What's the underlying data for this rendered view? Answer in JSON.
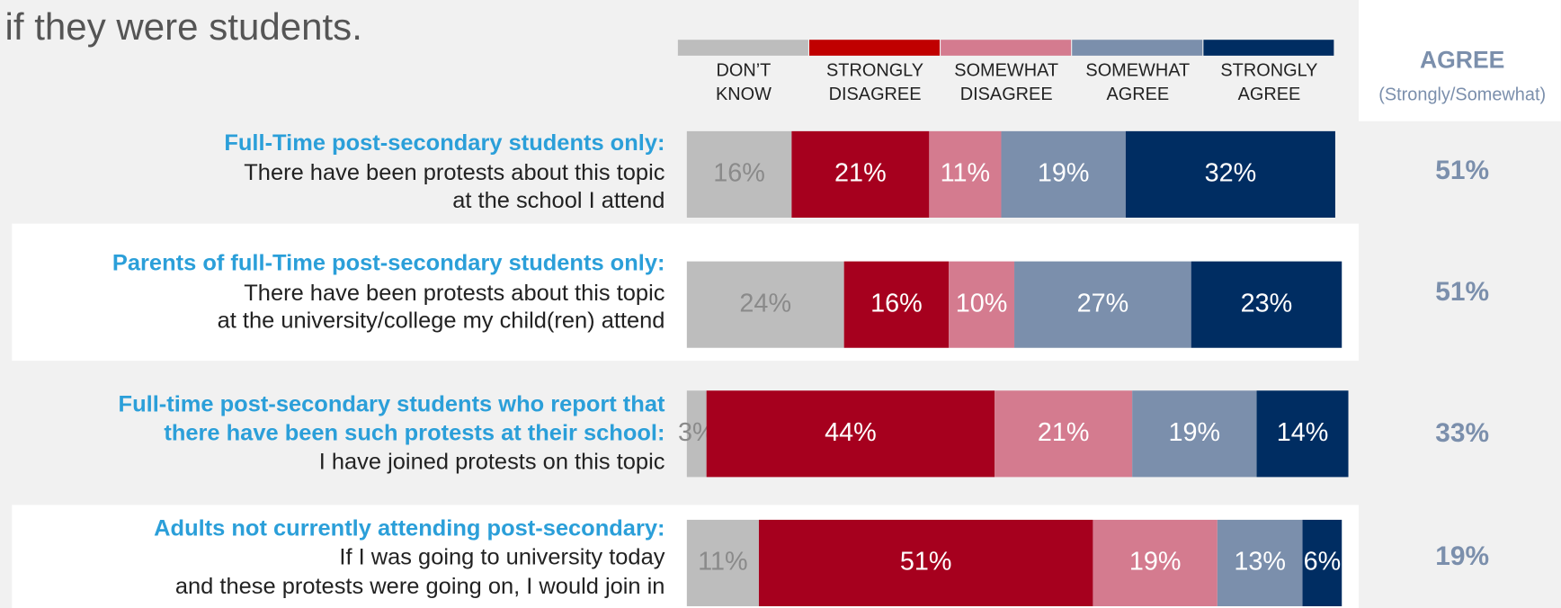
{
  "chart_data": {
    "type": "stacked-bar",
    "title": "if they were students.",
    "xlim": [
      0,
      100
    ],
    "series": [
      {
        "name": "DON’T KNOW",
        "color": "#bdbdbd",
        "legend_color": "#bdbdbd",
        "label_color": "#8a8a8a",
        "values": [
          16,
          24,
          3,
          11
        ],
        "value_labels": [
          "16%",
          "24%",
          "3%",
          "11%"
        ]
      },
      {
        "name": "STRONGLY DISAGREE",
        "color": "#a6001e",
        "legend_color": "#c00000",
        "label_color": "#ffffff",
        "values": [
          21,
          16,
          44,
          51
        ],
        "value_labels": [
          "21%",
          "16%",
          "44%",
          "51%"
        ]
      },
      {
        "name": "SOMEWHAT DISAGREE",
        "color": "#d47b8f",
        "legend_color": "#d47b8f",
        "label_color": "#ffffff",
        "values": [
          11,
          10,
          21,
          19
        ],
        "value_labels": [
          "11%",
          "10%",
          "21%",
          "19%"
        ]
      },
      {
        "name": "SOMEWHAT AGREE",
        "color": "#7b8fac",
        "legend_color": "#7b8fac",
        "label_color": "#ffffff",
        "values": [
          19,
          27,
          19,
          13
        ],
        "value_labels": [
          "19%",
          "27%",
          "19%",
          "13%"
        ]
      },
      {
        "name": "STRONGLY AGREE",
        "color": "#002d62",
        "legend_color": "#002d62",
        "label_color": "#ffffff",
        "values": [
          32,
          23,
          14,
          6
        ],
        "value_labels": [
          "32%",
          "23%",
          "14%",
          "6%"
        ]
      }
    ],
    "rows": [
      {
        "group": [
          "Full-Time post-secondary students only:"
        ],
        "text": [
          "There have been protests about this topic",
          "at the school I attend"
        ]
      },
      {
        "group": [
          "Parents of full-Time post-secondary students only:"
        ],
        "text": [
          "There have been protests about this topic",
          "at the university/college my child(ren) attend"
        ]
      },
      {
        "group": [
          "Full-time post-secondary students who report that",
          "there have been such protests at their school:"
        ],
        "text": [
          "I have joined protests on this topic"
        ]
      },
      {
        "group": [
          "Adults not currently attending post-secondary:"
        ],
        "text": [
          "If I was going to university today",
          "and these protests were going on, I would join in"
        ]
      }
    ],
    "agree": {
      "title": "AGREE",
      "subtitle": "(Strongly/Somewhat)",
      "values": [
        51,
        51,
        33,
        19
      ],
      "value_labels": [
        "51%",
        "51%",
        "33%",
        "19%"
      ]
    }
  }
}
